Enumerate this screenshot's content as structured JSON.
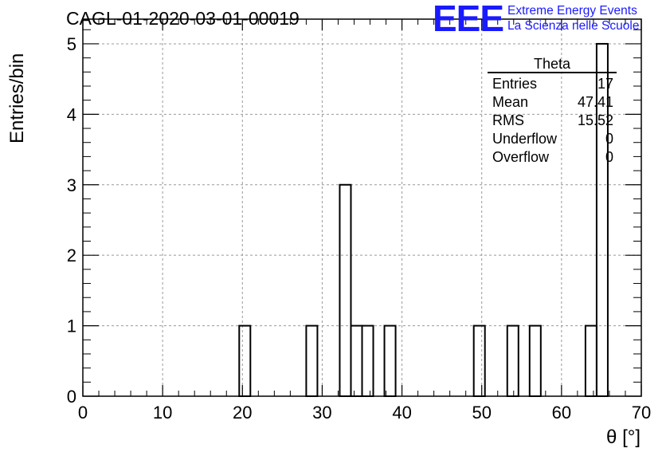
{
  "title": "CAGL-01-2020-03-01-00019",
  "logo": {
    "mark": "EEE",
    "line1": "Extreme Energy Events",
    "line2": "La Scienza nelle Scuole",
    "color": "#1a1aff"
  },
  "stats_box": {
    "name": "Theta",
    "rows": [
      {
        "label": "Entries",
        "value": "17"
      },
      {
        "label": "Mean",
        "value": "47.41"
      },
      {
        "label": "RMS",
        "value": "15.52"
      },
      {
        "label": "Underflow",
        "value": "0"
      },
      {
        "label": "Overflow",
        "value": "0"
      }
    ]
  },
  "chart_data": {
    "type": "bar",
    "style": "step-histogram",
    "xlabel": "θ [°]",
    "ylabel": "Entries/bin",
    "xlim": [
      0,
      70
    ],
    "ylim": [
      0,
      5.35
    ],
    "bin_width": 1.4,
    "x_ticks": [
      0,
      10,
      20,
      30,
      40,
      50,
      60,
      70
    ],
    "y_ticks": [
      0,
      1,
      2,
      3,
      4,
      5
    ],
    "grid": true,
    "bins": [
      {
        "low": 19.6,
        "high": 21.0,
        "count": 1
      },
      {
        "low": 28.0,
        "high": 29.4,
        "count": 1
      },
      {
        "low": 32.2,
        "high": 33.6,
        "count": 3
      },
      {
        "low": 33.6,
        "high": 35.0,
        "count": 1
      },
      {
        "low": 35.0,
        "high": 36.4,
        "count": 1
      },
      {
        "low": 37.8,
        "high": 39.2,
        "count": 1
      },
      {
        "low": 49.0,
        "high": 50.4,
        "count": 1
      },
      {
        "low": 53.2,
        "high": 54.6,
        "count": 1
      },
      {
        "low": 56.0,
        "high": 57.4,
        "count": 1
      },
      {
        "low": 63.0,
        "high": 64.4,
        "count": 1
      },
      {
        "low": 64.4,
        "high": 65.8,
        "count": 5
      }
    ]
  }
}
